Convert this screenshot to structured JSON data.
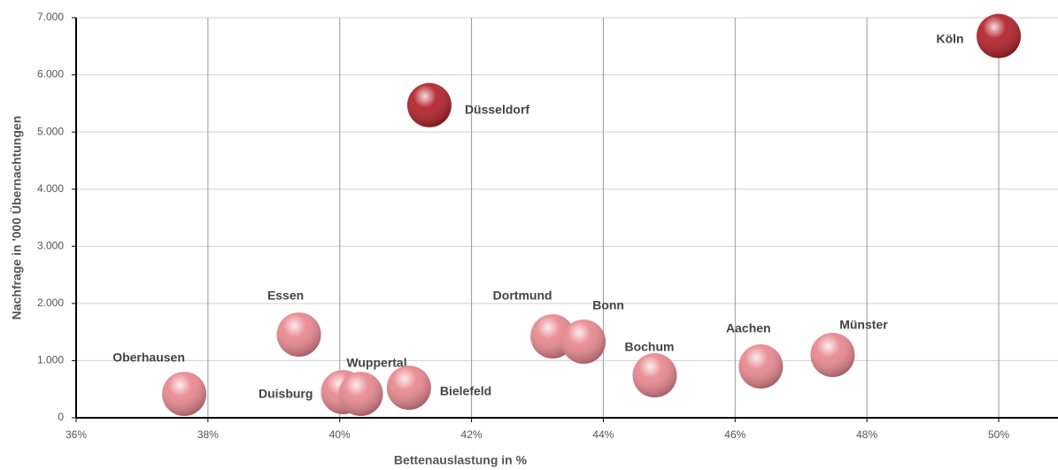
{
  "chart_data": {
    "type": "scatter",
    "x_label": "Bettenauslastung in %",
    "y_label": "Nachfrage in '000 Übernachtungen",
    "labels": [
      "Köln",
      "Düsseldorf",
      "Essen",
      "Oberhausen",
      "Duisburg",
      "Wuppertal",
      "Bielefeld",
      "Dortmund",
      "Bonn",
      "Bochum",
      "Aachen",
      "Münster"
    ],
    "x": [
      50.0,
      41.36,
      39.38,
      37.64,
      40.05,
      40.32,
      41.05,
      43.23,
      43.7,
      44.78,
      46.39,
      47.48
    ],
    "values": [
      6680,
      5470,
      1456,
      418,
      449,
      418,
      527,
      1425,
      1332,
      743,
      898,
      1100
    ],
    "colors": [
      "#b01a22",
      "#b01a22",
      "#e8848c",
      "#e8848c",
      "#e8848c",
      "#e8848c",
      "#e8848c",
      "#e8848c",
      "#e8848c",
      "#e8848c",
      "#e8848c",
      "#e8848c"
    ],
    "xlim": [
      36,
      50.9
    ],
    "xticks": [
      {
        "value": 36,
        "label": "36%"
      },
      {
        "value": 38,
        "label": "38%"
      },
      {
        "value": 40,
        "label": "40%"
      },
      {
        "value": 42,
        "label": "42%"
      },
      {
        "value": 44,
        "label": "44%"
      },
      {
        "value": 46,
        "label": "46%"
      },
      {
        "value": 48,
        "label": "48%"
      },
      {
        "value": 50,
        "label": "50%"
      }
    ],
    "ylim": [
      0,
      7000
    ],
    "yticks": [
      0,
      {
        "value": 1000,
        "label": "1.000"
      },
      {
        "value": 2000,
        "label": "2.000"
      },
      {
        "value": 3000,
        "label": "3.000"
      },
      {
        "value": 4000,
        "label": "4.000"
      },
      {
        "value": 5000,
        "label": "5.000"
      },
      {
        "value": 6000,
        "label": "6.000"
      },
      {
        "value": 7000,
        "label": "7.000"
      }
    ],
    "grid": true
  }
}
